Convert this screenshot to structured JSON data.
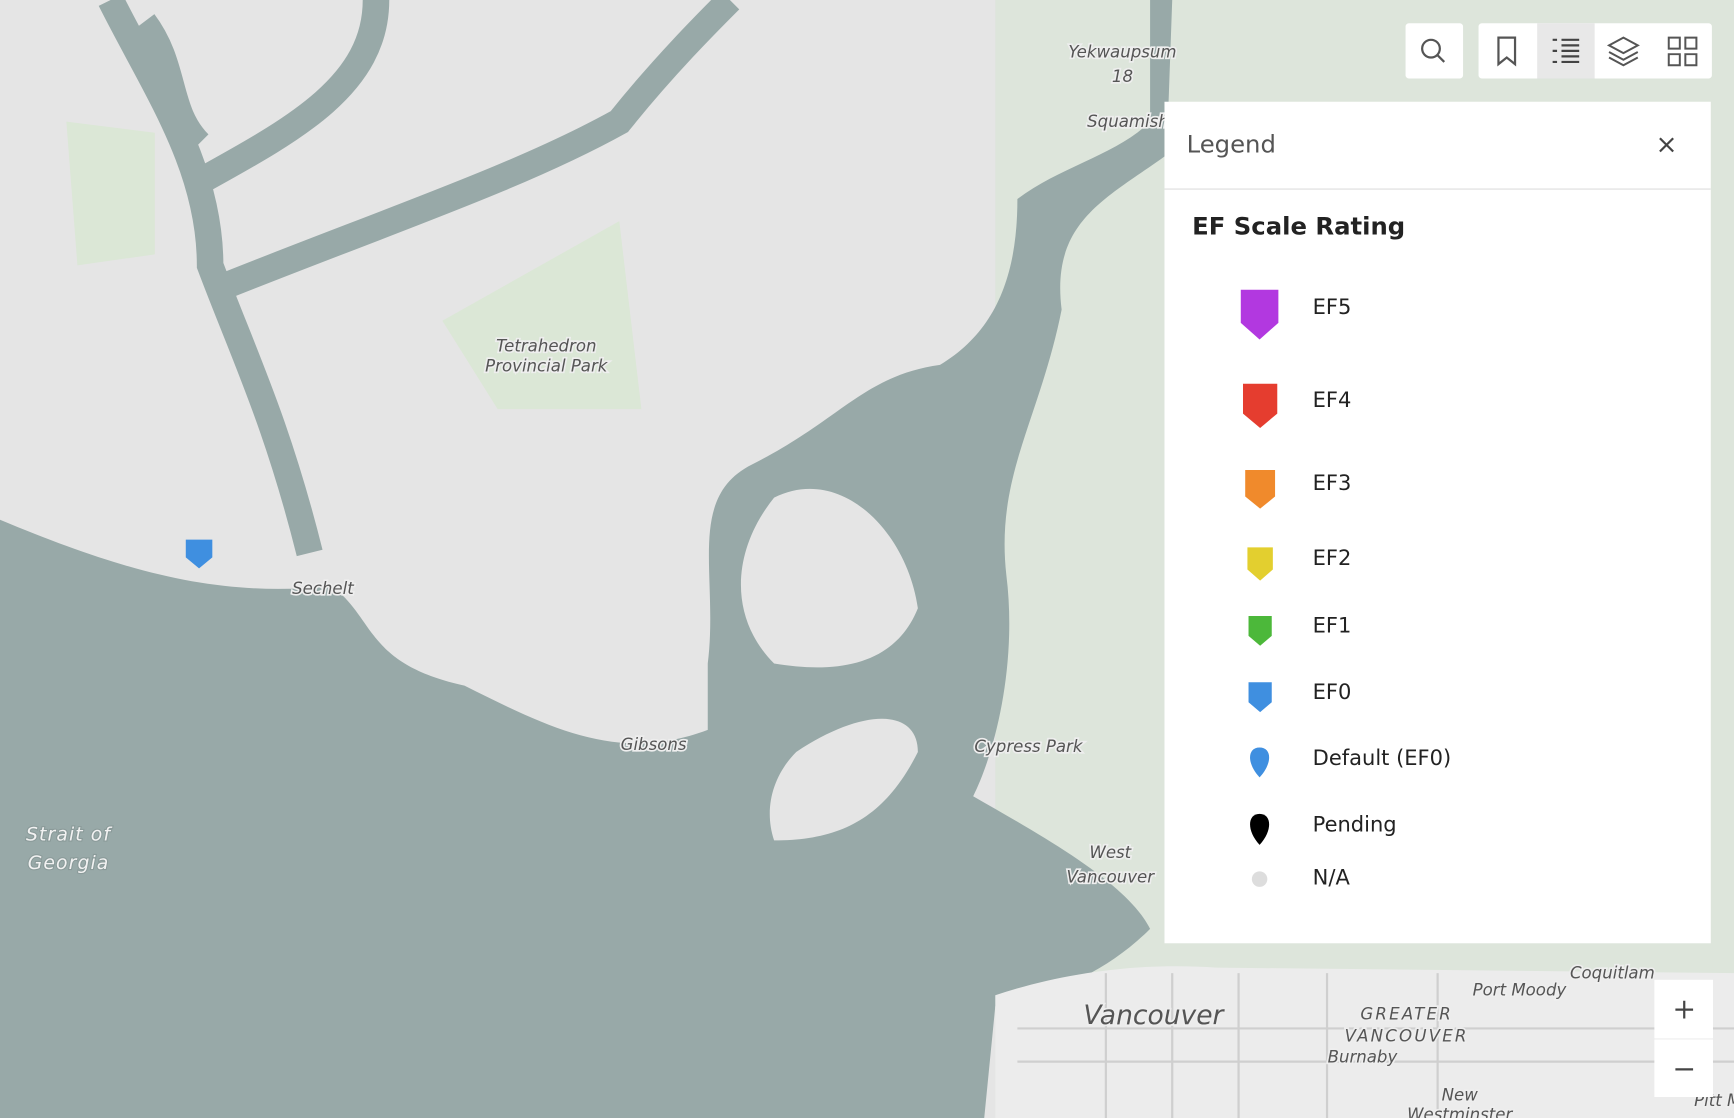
{
  "map": {
    "labels": [
      "Yekwaupsum",
      "18",
      "Squamish",
      "Tetrahedron",
      "Provincial Park",
      "Sechelt",
      "Gibsons",
      "Strait of",
      "Georgia",
      "Cypress Park",
      "West",
      "Vancouver",
      "Vancouver",
      "GREATER",
      "VANCOUVER",
      "Burnaby",
      "Port Moody",
      "Coquitlam",
      "New",
      "Westminster",
      "Pitt M"
    ]
  },
  "legend": {
    "title": "Legend",
    "layer_title": "EF Scale Rating",
    "items": [
      "EF5",
      "EF4",
      "EF3",
      "EF2",
      "EF1",
      "EF0",
      "Default (EF0)",
      "Pending",
      "N/A"
    ]
  }
}
